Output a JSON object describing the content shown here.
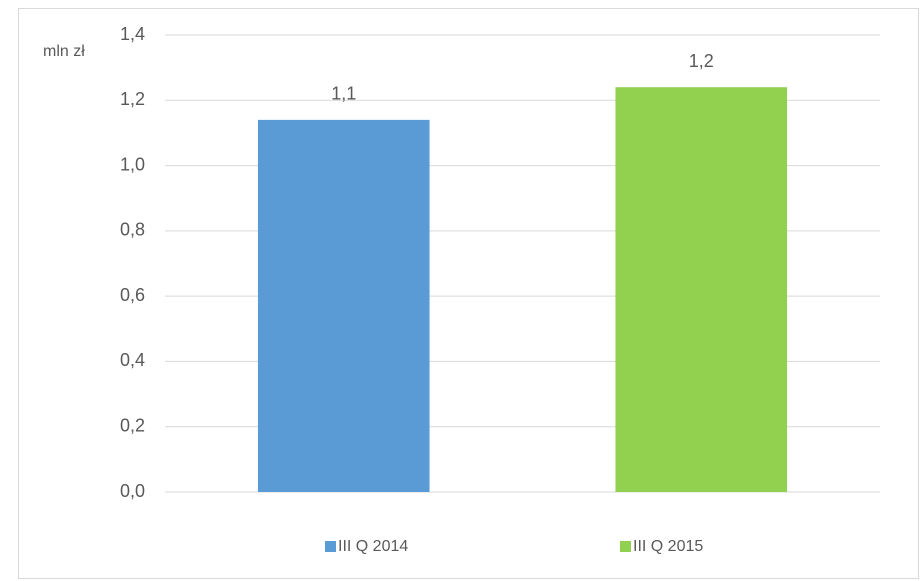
{
  "chart_data": {
    "type": "bar",
    "y_label": "mln zł",
    "categories": [
      null
    ],
    "series": [
      {
        "name": "III Q 2014",
        "color": "#5b9bd5",
        "values": [
          1.14
        ],
        "value_labels": [
          "1,1"
        ]
      },
      {
        "name": "III Q 2015",
        "color": "#92d050",
        "values": [
          1.24
        ],
        "value_labels": [
          "1,2"
        ]
      }
    ],
    "ylim": [
      0,
      1.4
    ],
    "yticks": [
      {
        "value": 0,
        "label": "0,0"
      },
      {
        "value": 0.2,
        "label": "0,2"
      },
      {
        "value": 0.4,
        "label": "0,4"
      },
      {
        "value": 0.6,
        "label": "0,6"
      },
      {
        "value": 0.8,
        "label": "0,8"
      },
      {
        "value": 1.0,
        "label": "1,0"
      },
      {
        "value": 1.2,
        "label": "1,2"
      },
      {
        "value": 1.4,
        "label": "1,4"
      }
    ],
    "grid": true,
    "legend": "bottom"
  }
}
